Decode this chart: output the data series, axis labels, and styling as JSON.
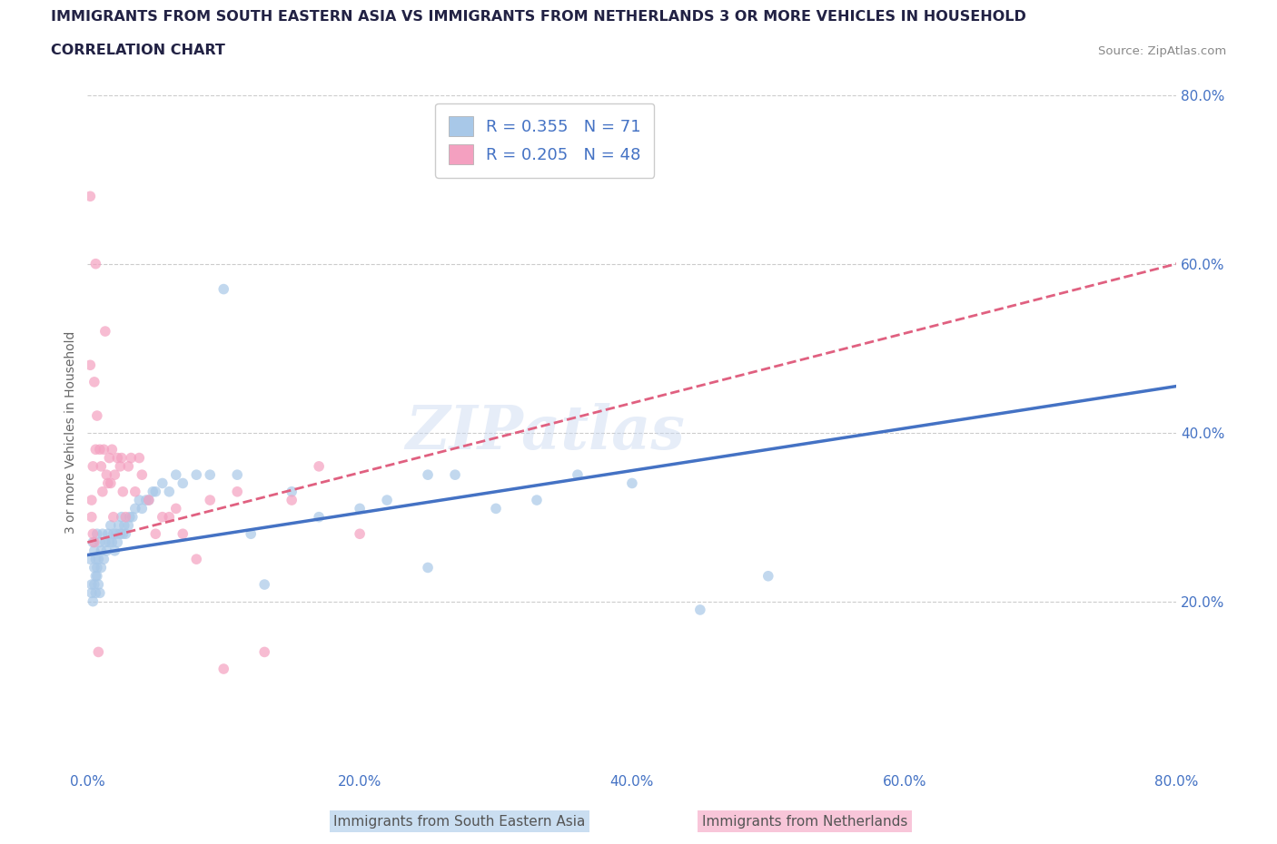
{
  "title_line1": "IMMIGRANTS FROM SOUTH EASTERN ASIA VS IMMIGRANTS FROM NETHERLANDS 3 OR MORE VEHICLES IN HOUSEHOLD",
  "title_line2": "CORRELATION CHART",
  "source": "Source: ZipAtlas.com",
  "ylabel": "3 or more Vehicles in Household",
  "xlim": [
    0.0,
    0.8
  ],
  "ylim": [
    0.0,
    0.8
  ],
  "xtick_labels": [
    "0.0%",
    "",
    "20.0%",
    "",
    "40.0%",
    "",
    "60.0%",
    "",
    "80.0%"
  ],
  "xtick_vals": [
    0.0,
    0.1,
    0.2,
    0.3,
    0.4,
    0.5,
    0.6,
    0.7,
    0.8
  ],
  "ytick_right_labels": [
    "20.0%",
    "40.0%",
    "60.0%",
    "80.0%"
  ],
  "ytick_vals": [
    0.2,
    0.4,
    0.6,
    0.8
  ],
  "series1_color": "#a8c8e8",
  "series2_color": "#f4a0c0",
  "series1_line_color": "#4472c4",
  "series2_line_color": "#e06080",
  "series1_label": "Immigrants from South Eastern Asia",
  "series2_label": "Immigrants from Netherlands",
  "r1": 0.355,
  "n1": 71,
  "r2": 0.205,
  "n2": 48,
  "watermark": "ZIPatlas",
  "background_color": "#ffffff",
  "grid_color": "#cccccc",
  "tick_color": "#4472c4",
  "title_color": "#222244",
  "series1_x": [
    0.002,
    0.003,
    0.004,
    0.005,
    0.005,
    0.006,
    0.007,
    0.007,
    0.008,
    0.009,
    0.01,
    0.01,
    0.011,
    0.012,
    0.013,
    0.014,
    0.015,
    0.016,
    0.017,
    0.018,
    0.019,
    0.02,
    0.021,
    0.022,
    0.023,
    0.024,
    0.025,
    0.026,
    0.027,
    0.028,
    0.03,
    0.031,
    0.033,
    0.035,
    0.038,
    0.04,
    0.043,
    0.045,
    0.048,
    0.05,
    0.055,
    0.06,
    0.065,
    0.07,
    0.08,
    0.09,
    0.1,
    0.11,
    0.12,
    0.13,
    0.15,
    0.17,
    0.2,
    0.22,
    0.25,
    0.27,
    0.3,
    0.33,
    0.36,
    0.4,
    0.45,
    0.5,
    0.003,
    0.004,
    0.005,
    0.006,
    0.006,
    0.007,
    0.008,
    0.009,
    0.25
  ],
  "series1_y": [
    0.25,
    0.22,
    0.27,
    0.24,
    0.26,
    0.23,
    0.28,
    0.24,
    0.25,
    0.27,
    0.24,
    0.26,
    0.28,
    0.25,
    0.27,
    0.26,
    0.28,
    0.27,
    0.29,
    0.27,
    0.28,
    0.26,
    0.28,
    0.27,
    0.29,
    0.28,
    0.3,
    0.28,
    0.29,
    0.28,
    0.29,
    0.3,
    0.3,
    0.31,
    0.32,
    0.31,
    0.32,
    0.32,
    0.33,
    0.33,
    0.34,
    0.33,
    0.35,
    0.34,
    0.35,
    0.35,
    0.57,
    0.35,
    0.28,
    0.22,
    0.33,
    0.3,
    0.31,
    0.32,
    0.35,
    0.35,
    0.31,
    0.32,
    0.35,
    0.34,
    0.19,
    0.23,
    0.21,
    0.2,
    0.22,
    0.21,
    0.25,
    0.23,
    0.22,
    0.21,
    0.24
  ],
  "series2_x": [
    0.002,
    0.003,
    0.004,
    0.005,
    0.006,
    0.006,
    0.007,
    0.008,
    0.009,
    0.01,
    0.011,
    0.012,
    0.013,
    0.014,
    0.015,
    0.016,
    0.017,
    0.018,
    0.019,
    0.02,
    0.022,
    0.024,
    0.025,
    0.026,
    0.028,
    0.03,
    0.032,
    0.035,
    0.038,
    0.04,
    0.045,
    0.05,
    0.055,
    0.06,
    0.065,
    0.07,
    0.08,
    0.09,
    0.1,
    0.11,
    0.13,
    0.15,
    0.17,
    0.2,
    0.002,
    0.003,
    0.004,
    0.005
  ],
  "series2_y": [
    0.68,
    0.3,
    0.36,
    0.46,
    0.6,
    0.38,
    0.42,
    0.14,
    0.38,
    0.36,
    0.33,
    0.38,
    0.52,
    0.35,
    0.34,
    0.37,
    0.34,
    0.38,
    0.3,
    0.35,
    0.37,
    0.36,
    0.37,
    0.33,
    0.3,
    0.36,
    0.37,
    0.33,
    0.37,
    0.35,
    0.32,
    0.28,
    0.3,
    0.3,
    0.31,
    0.28,
    0.25,
    0.32,
    0.12,
    0.33,
    0.14,
    0.32,
    0.36,
    0.28,
    0.48,
    0.32,
    0.28,
    0.27
  ],
  "line1_x0": 0.0,
  "line1_y0": 0.255,
  "line1_x1": 0.8,
  "line1_y1": 0.455,
  "line2_x0": 0.0,
  "line2_y0": 0.27,
  "line2_x1": 0.8,
  "line2_y1": 0.6
}
